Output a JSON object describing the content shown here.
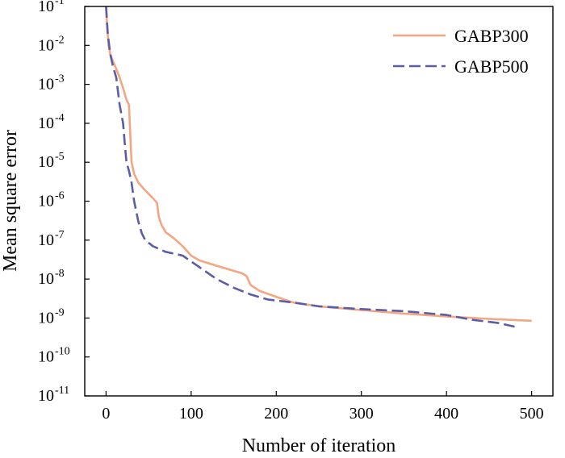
{
  "chart_data": {
    "type": "line",
    "xlabel": "Number of iteration",
    "ylabel": "Mean square error",
    "xlim": [
      -25,
      525
    ],
    "ylim_exp": [
      -11,
      -1
    ],
    "y_scale": "log",
    "x_ticks": [
      0,
      100,
      200,
      300,
      400,
      500
    ],
    "y_ticks": [
      {
        "base": "10",
        "exp": "-1"
      },
      {
        "base": "10",
        "exp": "-2"
      },
      {
        "base": "10",
        "exp": "-3"
      },
      {
        "base": "10",
        "exp": "-4"
      },
      {
        "base": "10",
        "exp": "-5"
      },
      {
        "base": "10",
        "exp": "-6"
      },
      {
        "base": "10",
        "exp": "-7"
      },
      {
        "base": "10",
        "exp": "-8"
      },
      {
        "base": "10",
        "exp": "-9"
      },
      {
        "base": "10",
        "exp": "-10"
      },
      {
        "base": "10",
        "exp": "-11"
      }
    ],
    "legend_position": "top-right",
    "grid": false,
    "series": [
      {
        "name": "GABP300",
        "color": "#f4a582",
        "style": "solid",
        "x": [
          0,
          1,
          3,
          5,
          8,
          12,
          16,
          20,
          24,
          27,
          29,
          30,
          33,
          38,
          45,
          55,
          60,
          62,
          65,
          70,
          80,
          90,
          100,
          110,
          130,
          160,
          165,
          170,
          180,
          200,
          220,
          250,
          300,
          350,
          400,
          450,
          500
        ],
        "y": [
          0.1,
          0.04,
          0.01,
          0.006,
          0.004,
          0.0025,
          0.0015,
          0.0008,
          0.0004,
          0.0003,
          3e-05,
          1e-05,
          5e-06,
          3e-06,
          2e-06,
          1.2e-06,
          9e-07,
          4e-07,
          2.5e-07,
          1.6e-07,
          1.1e-07,
          7e-08,
          4e-08,
          3e-08,
          2.2e-08,
          1.4e-08,
          1.2e-08,
          7e-09,
          5e-09,
          3.5e-09,
          2.5e-09,
          2e-09,
          1.6e-09,
          1.3e-09,
          1.1e-09,
          9.5e-10,
          8.5e-10
        ]
      },
      {
        "name": "GABP500",
        "color": "#5b5ea6",
        "style": "dashed",
        "x": [
          0,
          2,
          5,
          8,
          12,
          16,
          20,
          22,
          24,
          27,
          30,
          33,
          38,
          42,
          46,
          55,
          70,
          90,
          110,
          130,
          150,
          170,
          190,
          220,
          250,
          300,
          350,
          400,
          430,
          460,
          480
        ],
        "y": [
          0.1,
          0.02,
          0.006,
          0.003,
          0.0015,
          0.0003,
          0.0001,
          3e-05,
          1e-05,
          6e-06,
          3e-06,
          1e-06,
          3e-07,
          1.5e-07,
          1e-07,
          7e-08,
          5e-08,
          4e-08,
          2e-08,
          1e-08,
          6e-09,
          4e-09,
          3e-09,
          2.5e-09,
          2e-09,
          1.7e-09,
          1.5e-09,
          1.2e-09,
          9e-10,
          7.5e-10,
          6e-10
        ]
      }
    ]
  }
}
